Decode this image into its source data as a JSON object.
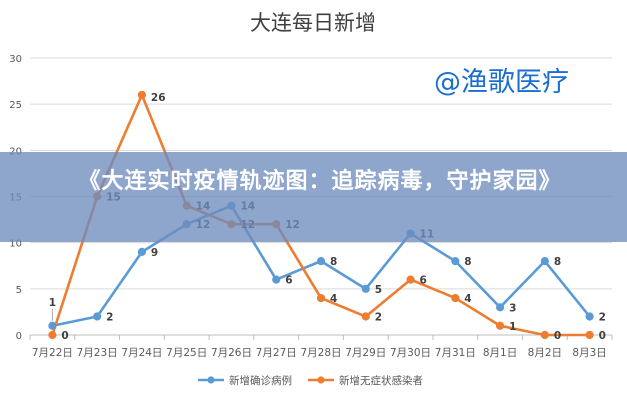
{
  "chart_data": {
    "type": "line",
    "title": "大连每日新增",
    "categories": [
      "7月22日",
      "7月23日",
      "7月24日",
      "7月25日",
      "7月26日",
      "7月27日",
      "7月28日",
      "7月29日",
      "7月30日",
      "7月31日",
      "8月1日",
      "8月2日",
      "8月3日"
    ],
    "ylim": [
      0,
      30
    ],
    "yticks": [
      0,
      5,
      10,
      15,
      20,
      25,
      30
    ],
    "grid": true,
    "legend_position": "bottom",
    "series": [
      {
        "name": "新增确诊病例",
        "color": "#5b9bd5",
        "values": [
          1,
          2,
          9,
          12,
          14,
          6,
          8,
          5,
          11,
          8,
          3,
          8,
          2
        ]
      },
      {
        "name": "新增无症状感染者",
        "color": "#ed7d31",
        "values": [
          0,
          15,
          26,
          14,
          12,
          12,
          4,
          2,
          6,
          4,
          1,
          0,
          0
        ]
      }
    ]
  },
  "watermark": "@渔歌医疗",
  "banner": {
    "text": "《大连实时疫情轨迹图：追踪病毒，守护家园》"
  }
}
